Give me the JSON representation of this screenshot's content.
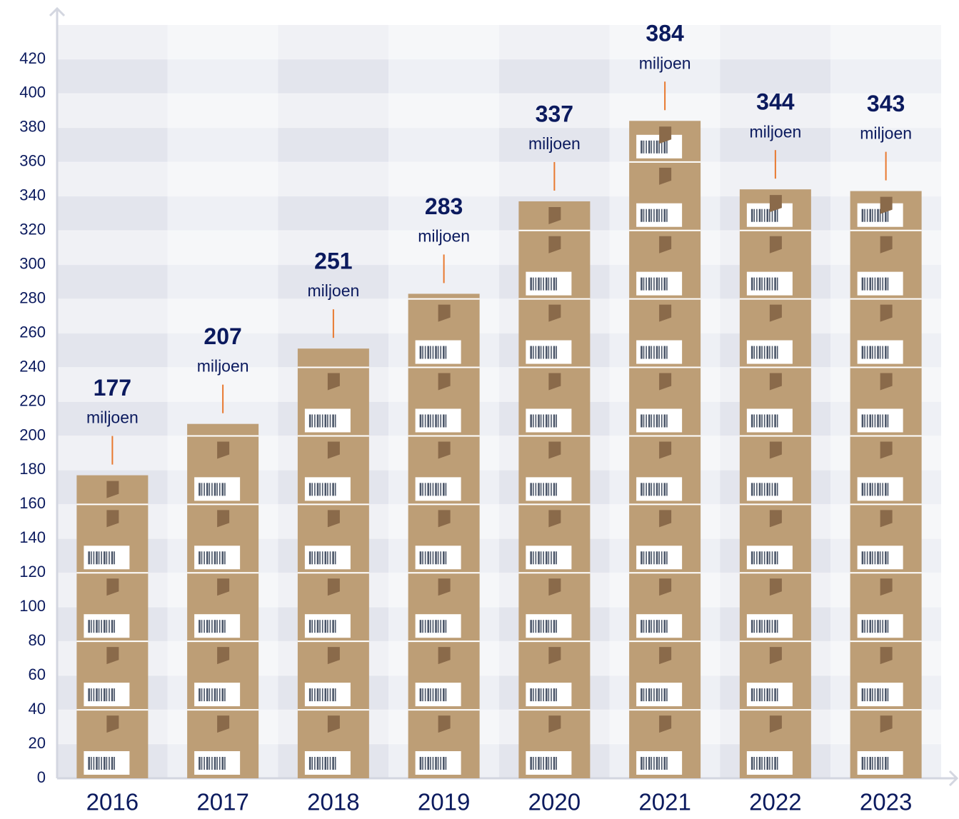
{
  "chart_data": {
    "type": "bar",
    "categories": [
      "2016",
      "2017",
      "2018",
      "2019",
      "2020",
      "2021",
      "2022",
      "2023"
    ],
    "values": [
      177,
      207,
      251,
      283,
      337,
      384,
      344,
      343
    ],
    "data_label_unit": "miljoen",
    "color": "#bd9e76",
    "ylim": [
      0,
      440
    ],
    "yticks": [
      0,
      20,
      40,
      60,
      80,
      100,
      120,
      140,
      160,
      180,
      200,
      220,
      240,
      260,
      280,
      300,
      320,
      340,
      360,
      380,
      400,
      420
    ],
    "grid": true
  }
}
